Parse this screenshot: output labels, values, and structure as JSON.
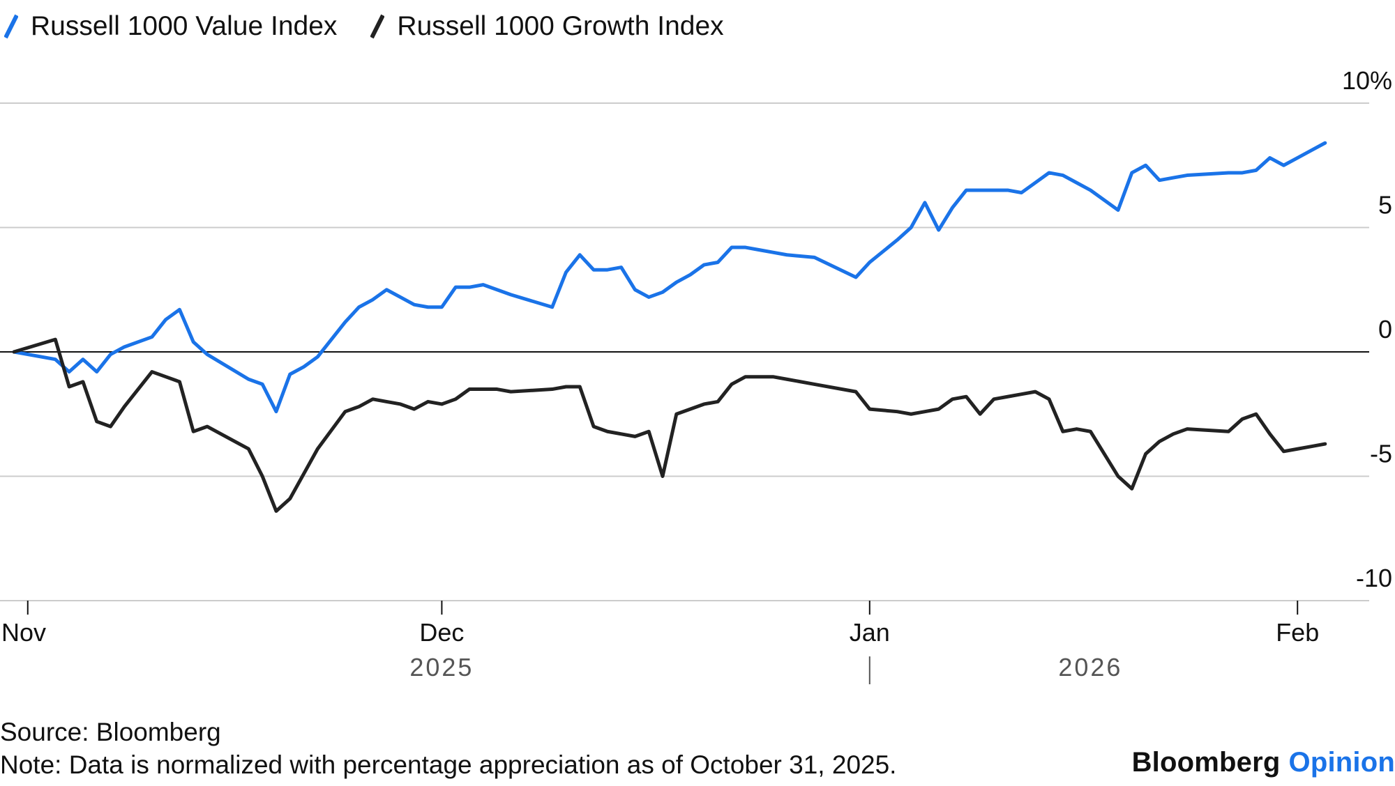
{
  "legend": [
    {
      "label": "Russell 1000 Value Index",
      "color": "#1a73e8"
    },
    {
      "label": "Russell 1000 Growth Index",
      "color": "#222222"
    }
  ],
  "footer": {
    "source": "Source: Bloomberg",
    "note": "Note: Data is normalized with percentage appreciation as of October 31, 2025."
  },
  "brand": {
    "name": "Bloomberg",
    "suffix": "Opinion",
    "suffix_color": "#1a73e8"
  },
  "chart_data": {
    "type": "line",
    "title": "",
    "xlabel": "",
    "ylabel": "",
    "ylim": [
      -10,
      10
    ],
    "xlim": [
      0,
      94
    ],
    "y_ticks": [
      {
        "value": 10,
        "label": "10%"
      },
      {
        "value": 5,
        "label": "5"
      },
      {
        "value": 0,
        "label": "0"
      },
      {
        "value": -5,
        "label": "-5"
      },
      {
        "value": -10,
        "label": "-10"
      }
    ],
    "x_ticks": [
      {
        "day": 1,
        "label": "Nov"
      },
      {
        "day": 31,
        "label": "Dec"
      },
      {
        "day": 62,
        "label": "Jan"
      },
      {
        "day": 93,
        "label": "Feb"
      }
    ],
    "year_labels": [
      {
        "label": "2025",
        "day": 31
      },
      {
        "label": "2026",
        "day": 78
      }
    ],
    "year_separator_day": 62,
    "x": [
      0,
      3,
      4,
      5,
      6,
      7,
      8,
      10,
      11,
      12,
      13,
      14,
      17,
      18,
      19,
      20,
      21,
      22,
      24,
      25,
      26,
      27,
      28,
      29,
      30,
      31,
      32,
      33,
      34,
      35,
      36,
      39,
      40,
      41,
      42,
      43,
      44,
      45,
      46,
      47,
      48,
      49,
      50,
      51,
      52,
      53,
      54,
      55,
      56,
      58,
      61,
      62,
      64,
      65,
      66,
      67,
      68,
      69,
      70,
      71,
      72,
      73,
      74,
      75,
      76,
      77,
      78,
      80,
      81,
      82,
      83,
      84,
      85,
      88,
      89,
      90,
      91,
      92,
      93,
      94,
      95
    ],
    "series": [
      {
        "name": "Russell 1000 Value Index",
        "color": "#1a73e8",
        "values": [
          0,
          -0.3,
          -0.8,
          -0.3,
          -0.8,
          -0.1,
          0.2,
          0.6,
          1.3,
          1.7,
          0.4,
          -0.1,
          -1.1,
          -1.3,
          -2.4,
          -0.9,
          -0.6,
          -0.2,
          1.2,
          1.8,
          2.1,
          2.5,
          2.2,
          1.9,
          1.8,
          1.8,
          2.6,
          2.6,
          2.7,
          2.5,
          2.3,
          1.8,
          3.2,
          3.9,
          3.3,
          3.3,
          3.4,
          2.5,
          2.2,
          2.4,
          2.8,
          3.1,
          3.5,
          3.6,
          4.2,
          4.2,
          4.1,
          4.0,
          3.9,
          3.8,
          3.0,
          3.6,
          4.5,
          5.0,
          6.0,
          4.9,
          5.8,
          6.5,
          6.5,
          6.5,
          6.5,
          6.4,
          6.8,
          7.2,
          7.1,
          6.8,
          6.5,
          5.7,
          7.2,
          7.5,
          6.9,
          7.0,
          7.1,
          7.2,
          7.2,
          7.3,
          7.8,
          7.5,
          7.8,
          8.1,
          8.4
        ]
      },
      {
        "name": "Russell 1000 Growth Index",
        "color": "#222222",
        "values": [
          0,
          0.5,
          -1.4,
          -1.2,
          -2.8,
          -3.0,
          -2.2,
          -0.8,
          -1.0,
          -1.2,
          -3.2,
          -3.0,
          -3.9,
          -5.0,
          -6.4,
          -5.9,
          -4.9,
          -3.9,
          -2.4,
          -2.2,
          -1.9,
          -2.0,
          -2.1,
          -2.3,
          -2.0,
          -2.1,
          -1.9,
          -1.5,
          -1.5,
          -1.5,
          -1.6,
          -1.5,
          -1.4,
          -1.4,
          -3.0,
          -3.2,
          -3.3,
          -3.4,
          -3.2,
          -5.0,
          -2.5,
          -2.3,
          -2.1,
          -2.0,
          -1.3,
          -1.0,
          -1.0,
          -1.0,
          -1.1,
          -1.3,
          -1.6,
          -2.3,
          -2.4,
          -2.5,
          -2.4,
          -2.3,
          -1.9,
          -1.8,
          -2.5,
          -1.9,
          -1.8,
          -1.7,
          -1.6,
          -1.9,
          -3.2,
          -3.1,
          -3.2,
          -5.0,
          -5.5,
          -4.1,
          -3.6,
          -3.3,
          -3.1,
          -3.2,
          -2.7,
          -2.5,
          -3.3,
          -4.0,
          -3.9,
          -3.8,
          -3.7
        ]
      }
    ]
  }
}
